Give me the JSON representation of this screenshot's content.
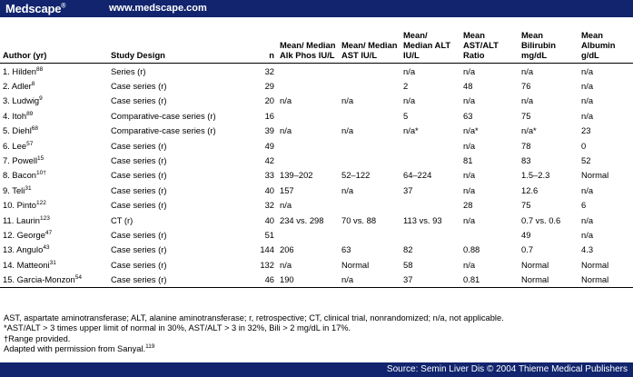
{
  "header": {
    "logo": "Medscape",
    "logo_mark": "®",
    "site": "www.medscape.com"
  },
  "table": {
    "columns": [
      "Author (yr)",
      "Study Design",
      "n",
      "Mean/ Median Alk Phos IU/L",
      "Mean/ Median AST IU/L",
      "Mean/ Median ALT IU/L",
      "Mean AST/ALT Ratio",
      "Mean Bilirubin mg/dL",
      "Mean Albumin g/dL"
    ],
    "rows": [
      {
        "author": "1. Hilden",
        "ref": "88",
        "design": "Series (r)",
        "n": "32",
        "alk": "",
        "ast": "",
        "alt": "n/a",
        "ratio": "n/a",
        "bili": "n/a",
        "alb": "n/a"
      },
      {
        "author": "2. Adler",
        "ref": "8",
        "design": "Case series (r)",
        "n": "29",
        "alk": "",
        "ast": "",
        "alt": "2",
        "ratio": "48",
        "bili": "76",
        "alb": "n/a"
      },
      {
        "author": "3. Ludwig",
        "ref": "9",
        "design": "Case series (r)",
        "n": "20",
        "alk": "n/a",
        "ast": "n/a",
        "alt": "n/a",
        "ratio": "n/a",
        "bili": "n/a",
        "alb": "n/a"
      },
      {
        "author": "4. Itoh",
        "ref": "89",
        "design": "Comparative-case series (r)",
        "n": "16",
        "alk": "",
        "ast": "",
        "alt": "5",
        "ratio": "63",
        "bili": "75",
        "alb": "n/a"
      },
      {
        "author": "5. Diehl",
        "ref": "68",
        "design": "Comparative-case series (r)",
        "n": "39",
        "alk": "n/a",
        "ast": "n/a",
        "alt": "n/a*",
        "ratio": "n/a*",
        "bili": "n/a*",
        "alb": "23"
      },
      {
        "author": "6. Lee",
        "ref": "57",
        "design": "Case series (r)",
        "n": "49",
        "alk": "",
        "ast": "",
        "alt": "",
        "ratio": "n/a",
        "bili": "78",
        "alb": "0"
      },
      {
        "author": "7. Powell",
        "ref": "15",
        "design": "Case series (r)",
        "n": "42",
        "alk": "",
        "ast": "",
        "alt": "",
        "ratio": "81",
        "bili": "83",
        "alb": "52"
      },
      {
        "author": "8. Bacon",
        "ref": "10†",
        "design": "Case series (r)",
        "n": "33",
        "alk": "139–202",
        "ast": "52–122",
        "alt": "64–224",
        "ratio": "n/a",
        "bili": "1.5–2.3",
        "alb": "Normal"
      },
      {
        "author": "9. Teli",
        "ref": "31",
        "design": "Case series (r)",
        "n": "40",
        "alk": "157",
        "ast": "n/a",
        "alt": "37",
        "ratio": "n/a",
        "bili": "12.6",
        "alb": "n/a"
      },
      {
        "author": "10. Pinto",
        "ref": "122",
        "design": "Case series (r)",
        "n": "32",
        "alk": "n/a",
        "ast": "",
        "alt": "",
        "ratio": "28",
        "bili": "75",
        "alb": "6"
      },
      {
        "author": "11. Laurin",
        "ref": "123",
        "design": "CT (r)",
        "n": "40",
        "alk": "234 vs. 298",
        "ast": "70 vs. 88",
        "alt": "113 vs. 93",
        "ratio": "n/a",
        "bili": "0.7 vs. 0.6",
        "alb": "n/a"
      },
      {
        "author": "12. George",
        "ref": "47",
        "design": "Case series (r)",
        "n": "51",
        "alk": "",
        "ast": "",
        "alt": "",
        "ratio": "",
        "bili": "49",
        "alb": "n/a"
      },
      {
        "author": "13. Angulo",
        "ref": "43",
        "design": "Case series (r)",
        "n": "144",
        "alk": "206",
        "ast": "63",
        "alt": "82",
        "ratio": "0.88",
        "bili": "0.7",
        "alb": "4.3"
      },
      {
        "author": "14. Matteoni",
        "ref": "31",
        "design": "Case series (r)",
        "n": "132",
        "alk": "n/a",
        "ast": "Normal",
        "alt": "58",
        "ratio": "n/a",
        "bili": "Normal",
        "alb": "Normal"
      },
      {
        "author": "15. Garcia-Monzon",
        "ref": "54",
        "design": "Case series (r)",
        "n": "46",
        "alk": "190",
        "ast": "n/a",
        "alt": "37",
        "ratio": "0.81",
        "bili": "Normal",
        "alb": "Normal"
      }
    ]
  },
  "notes": {
    "abbrev": "AST, aspartate aminotransferase; ALT, alanine aminotransferase; r, retrospective; CT, clinical trial, nonrandomized; n/a, not applicable.",
    "star": "*AST/ALT > 3 times upper limit of normal in 30%, AST/ALT > 3 in 32%, Bili > 2 mg/dL in 17%.",
    "dagger": "†Range provided.",
    "adapted": "Adapted with permission from Sanyal.",
    "adapted_ref": "119"
  },
  "footer": {
    "source": "Source: Semin Liver Dis © 2004 Thieme Medical Publishers"
  },
  "colors": {
    "bar": "#11246d",
    "bar_text": "#ffffff"
  }
}
